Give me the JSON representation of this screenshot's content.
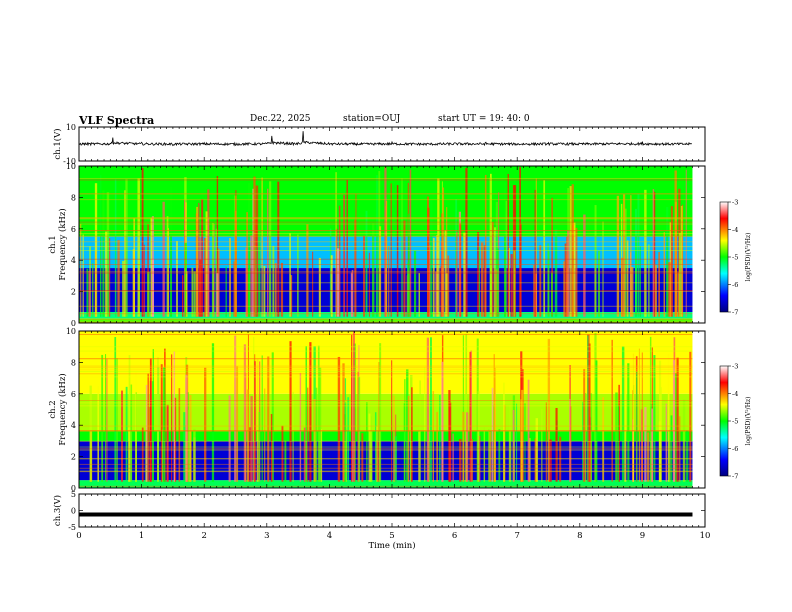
{
  "header": {
    "title": "VLF Spectra",
    "date": "Dec.22, 2025",
    "station": "station=OUJ",
    "start": "start  UT =   19: 40: 0"
  },
  "chart_data": [
    {
      "type": "line",
      "name": "ch1-waveform",
      "ylabel": "ch.1(V)",
      "ylim": [
        -10,
        10
      ],
      "yticks": [
        "10",
        "-10"
      ],
      "baseline": 0,
      "x": [
        0,
        0.5,
        0.54,
        1.0,
        1.5,
        2.0,
        2.5,
        3.0,
        3.08,
        3.5,
        3.58,
        4.0,
        4.5,
        5.0,
        5.5,
        6.0,
        6.5,
        7.0,
        7.5,
        8.0,
        8.5,
        9.0,
        9.5,
        9.8
      ],
      "y": [
        0,
        0.5,
        4.5,
        0.3,
        -0.4,
        0.2,
        -0.3,
        0.4,
        5.0,
        0.3,
        7.0,
        0.2,
        -0.3,
        0.5,
        -0.4,
        0.2,
        0.4,
        -0.3,
        0.3,
        -0.2,
        0.4,
        0.8,
        -0.3,
        0
      ]
    },
    {
      "type": "heatmap",
      "name": "ch1-spectrogram",
      "ylabel": "ch.1\nFrequency (kHz)",
      "ylim": [
        0,
        10
      ],
      "yticks": [
        "0",
        "2",
        "4",
        "6",
        "8",
        "10"
      ],
      "colorbar": {
        "label": "log(PSD)(V²/Hz)",
        "ticks": [
          "-3",
          "-4",
          "-5",
          "-6",
          "-7"
        ],
        "range": [
          -7,
          -3
        ]
      },
      "bands": [
        {
          "f0": 0,
          "f1": 0.3,
          "level": -4.8
        },
        {
          "f0": 0.3,
          "f1": 0.7,
          "level": -5.3
        },
        {
          "f0": 0.7,
          "f1": 3.5,
          "level": -6.6
        },
        {
          "f0": 3.5,
          "f1": 5.5,
          "level": -5.8
        },
        {
          "f0": 5.5,
          "f1": 10,
          "level": -5.0
        }
      ]
    },
    {
      "type": "heatmap",
      "name": "ch2-spectrogram",
      "ylabel": "ch.2\nFrequency (kHz)",
      "ylim": [
        0,
        10
      ],
      "yticks": [
        "0",
        "2",
        "4",
        "6",
        "8",
        "10"
      ],
      "colorbar": {
        "label": "log(PSD)(V²/Hz)",
        "ticks": [
          "-3",
          "-4",
          "-5",
          "-6",
          "-7"
        ],
        "range": [
          -7,
          -3
        ]
      },
      "bands": [
        {
          "f0": 0,
          "f1": 0.5,
          "level": -5.2
        },
        {
          "f0": 0.5,
          "f1": 3.0,
          "level": -6.6
        },
        {
          "f0": 3.0,
          "f1": 3.6,
          "level": -5.0
        },
        {
          "f0": 3.6,
          "f1": 6.0,
          "level": -4.6
        },
        {
          "f0": 6.0,
          "f1": 10,
          "level": -4.4
        }
      ]
    },
    {
      "type": "line",
      "name": "ch3-waveform",
      "ylabel": "ch.3(V)",
      "ylim": [
        -5,
        5
      ],
      "yticks": [
        "5",
        "0",
        "-5"
      ],
      "x": [
        0,
        9.8
      ],
      "y": [
        -1.2,
        -1.2
      ]
    }
  ],
  "xaxis": {
    "label": "Time (min)",
    "range": [
      0,
      10
    ],
    "ticks": [
      "0",
      "1",
      "2",
      "3",
      "4",
      "5",
      "6",
      "7",
      "8",
      "9",
      "10"
    ]
  },
  "data_end_min": 9.8,
  "colors": {
    "text": "#000000"
  }
}
